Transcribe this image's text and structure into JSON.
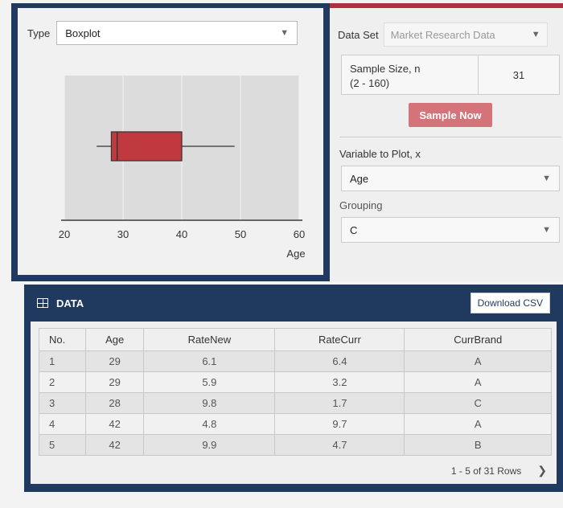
{
  "plot_panel": {
    "type_label": "Type",
    "type_value": "Boxplot"
  },
  "chart_data": {
    "type": "boxplot",
    "xlabel": "Age",
    "xlim": [
      20,
      60
    ],
    "ticks": [
      "20",
      "30",
      "40",
      "50",
      "60"
    ],
    "box": {
      "min": 25.5,
      "q1": 28,
      "median": 29,
      "q3": 40,
      "max": 49
    },
    "box_color": "#c0393e"
  },
  "controls": {
    "dataset_label": "Data Set",
    "dataset_value": "Market Research Data",
    "sample_size_label": "Sample Size, n",
    "sample_size_range": "(2 - 160)",
    "sample_size_value": "31",
    "sample_button": "Sample Now",
    "variable_label": "Variable to Plot, x",
    "variable_value": "Age",
    "grouping_label": "Grouping",
    "grouping_value": "C"
  },
  "data_table": {
    "title": "DATA",
    "download_button": "Download CSV",
    "columns": [
      "No.",
      "Age",
      "RateNew",
      "RateCurr",
      "CurrBrand"
    ],
    "rows": [
      [
        "1",
        "29",
        "6.1",
        "6.4",
        "A"
      ],
      [
        "2",
        "29",
        "5.9",
        "3.2",
        "A"
      ],
      [
        "3",
        "28",
        "9.8",
        "1.7",
        "C"
      ],
      [
        "4",
        "42",
        "4.8",
        "9.7",
        "A"
      ],
      [
        "5",
        "42",
        "9.9",
        "4.7",
        "B"
      ]
    ],
    "pagination": "1 - 5 of 31 Rows"
  },
  "colors": {
    "accent_dark": "#1f3a5e",
    "accent_red": "#b03040",
    "button_red": "#d4737a"
  }
}
